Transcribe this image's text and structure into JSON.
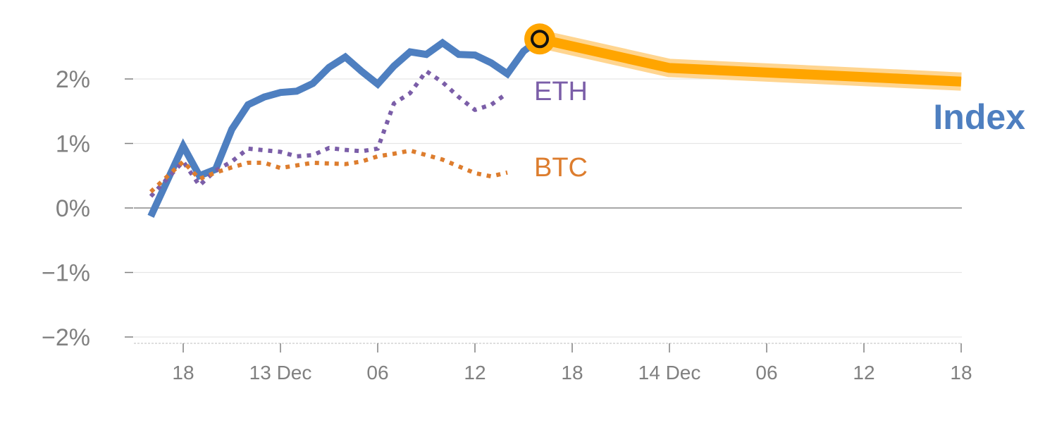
{
  "chart_data": {
    "type": "line",
    "title": "",
    "xlabel": "",
    "ylabel": "",
    "ylim": [
      -2,
      2.6
    ],
    "grid": true,
    "y_ticks": [
      {
        "value": 2,
        "label": "2%"
      },
      {
        "value": 1,
        "label": "1%"
      },
      {
        "value": 0,
        "label": "0%"
      },
      {
        "value": -1,
        "label": "−1%"
      },
      {
        "value": -2,
        "label": "−2%"
      }
    ],
    "x_ticks": [
      {
        "x": 1,
        "label": "18"
      },
      {
        "x": 4,
        "label": "13 Dec"
      },
      {
        "x": 7,
        "label": "06"
      },
      {
        "x": 10,
        "label": "12"
      },
      {
        "x": 13,
        "label": "18"
      },
      {
        "x": 16,
        "label": "14 Dec"
      },
      {
        "x": 19,
        "label": "06"
      },
      {
        "x": 22,
        "label": "12"
      },
      {
        "x": 25,
        "label": "18"
      }
    ],
    "xlim": [
      0,
      25
    ],
    "series": [
      {
        "name": "Index",
        "style": "solid",
        "color": "#4e7fc0",
        "points": [
          [
            0,
            -0.13
          ],
          [
            1,
            0.96
          ],
          [
            1.5,
            0.5
          ],
          [
            2,
            0.6
          ],
          [
            2.5,
            1.22
          ],
          [
            3,
            1.6
          ],
          [
            3.5,
            1.72
          ],
          [
            4,
            1.79
          ],
          [
            4.5,
            1.81
          ],
          [
            5,
            1.93
          ],
          [
            5.5,
            2.18
          ],
          [
            6,
            2.34
          ],
          [
            6.5,
            2.12
          ],
          [
            7,
            1.92
          ],
          [
            7.5,
            2.2
          ],
          [
            8,
            2.42
          ],
          [
            8.5,
            2.38
          ],
          [
            9,
            2.56
          ],
          [
            9.5,
            2.38
          ],
          [
            10,
            2.37
          ],
          [
            10.5,
            2.25
          ],
          [
            11,
            2.08
          ],
          [
            11.5,
            2.43
          ],
          [
            12,
            2.62
          ]
        ]
      },
      {
        "name": "ETH",
        "style": "dotted",
        "color": "#7b5ea8",
        "points": [
          [
            0,
            0.18
          ],
          [
            1,
            0.72
          ],
          [
            1.5,
            0.35
          ],
          [
            2,
            0.58
          ],
          [
            2.5,
            0.72
          ],
          [
            3,
            0.92
          ],
          [
            4,
            0.87
          ],
          [
            4.5,
            0.8
          ],
          [
            5,
            0.82
          ],
          [
            5.5,
            0.93
          ],
          [
            6,
            0.9
          ],
          [
            6.5,
            0.88
          ],
          [
            7,
            0.92
          ],
          [
            7.5,
            1.62
          ],
          [
            8,
            1.78
          ],
          [
            8.5,
            2.12
          ],
          [
            9,
            1.95
          ],
          [
            9.5,
            1.72
          ],
          [
            10,
            1.52
          ],
          [
            10.5,
            1.6
          ],
          [
            11,
            1.78
          ]
        ]
      },
      {
        "name": "BTC",
        "style": "dotted",
        "color": "#dd7d2e",
        "points": [
          [
            0,
            0.25
          ],
          [
            1,
            0.72
          ],
          [
            1.5,
            0.45
          ],
          [
            2,
            0.55
          ],
          [
            2.5,
            0.63
          ],
          [
            3,
            0.7
          ],
          [
            3.5,
            0.7
          ],
          [
            4,
            0.62
          ],
          [
            5,
            0.7
          ],
          [
            6,
            0.68
          ],
          [
            6.5,
            0.72
          ],
          [
            7,
            0.8
          ],
          [
            7.5,
            0.84
          ],
          [
            8,
            0.89
          ],
          [
            9,
            0.75
          ],
          [
            10,
            0.54
          ],
          [
            10.5,
            0.49
          ],
          [
            11,
            0.55
          ]
        ]
      },
      {
        "name": "",
        "style": "forecast",
        "color": "#ffa500",
        "points": [
          [
            12,
            2.62
          ],
          [
            16,
            2.17
          ],
          [
            25,
            1.96
          ]
        ]
      }
    ],
    "labels": {
      "eth": "ETH",
      "btc": "BTC",
      "index": "Index"
    },
    "current_marker": {
      "x": 12,
      "y": 2.62
    }
  }
}
